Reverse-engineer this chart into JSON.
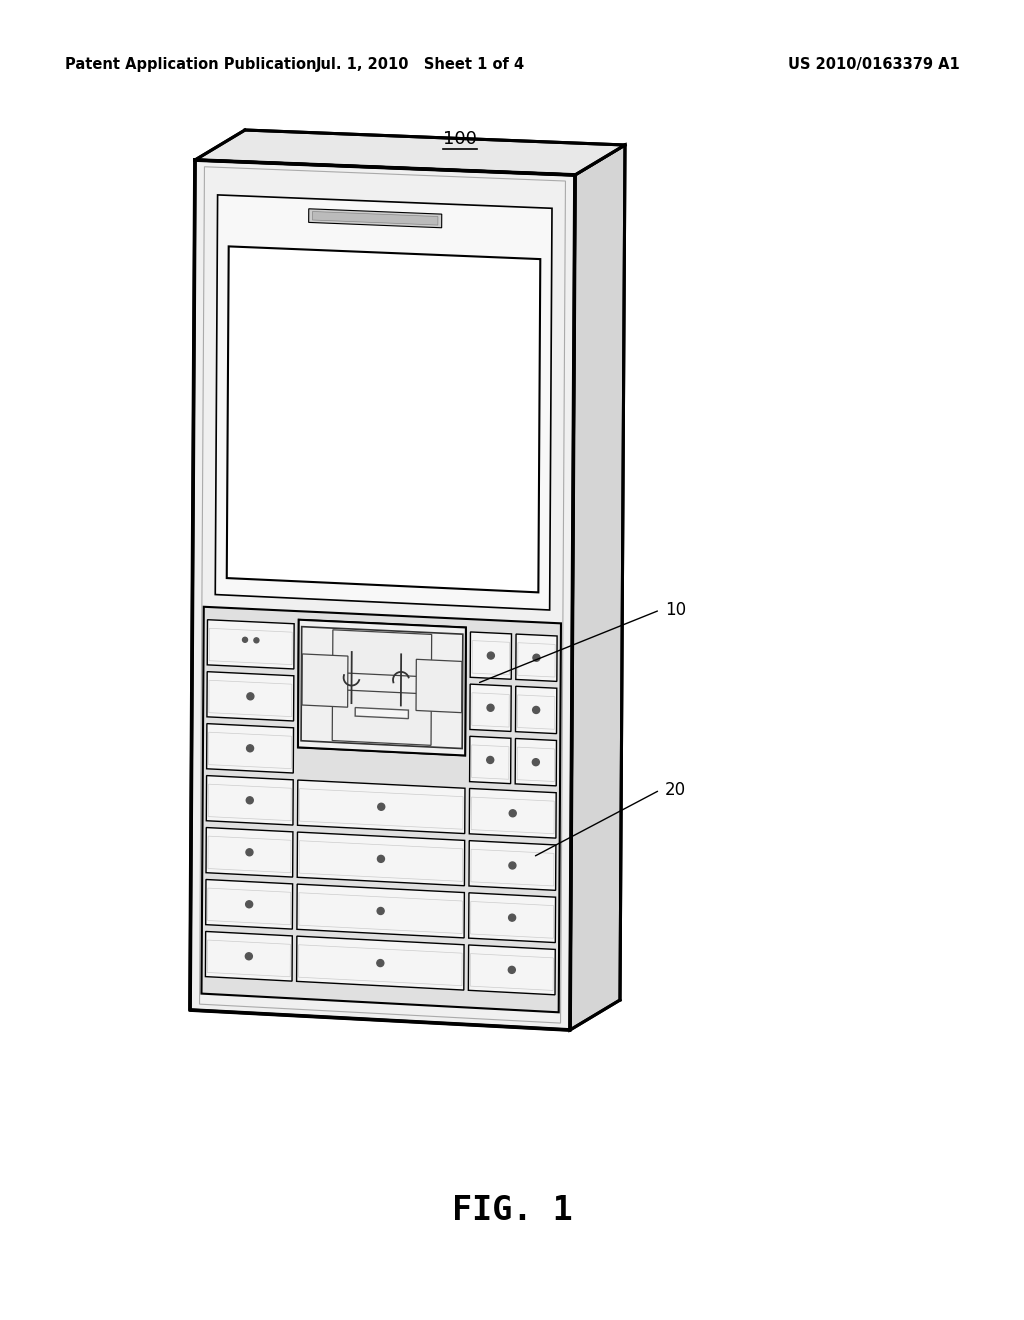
{
  "bg_color": "#ffffff",
  "header_left": "Patent Application Publication",
  "header_mid": "Jul. 1, 2010   Sheet 1 of 4",
  "header_right": "US 2010/0163379 A1",
  "header_fontsize": 10.5,
  "fig_label": "FIG. 1",
  "fig_label_fontsize": 24,
  "line_color": "#000000",
  "lw_outer": 2.2,
  "lw_inner": 1.2,
  "lw_key": 1.0
}
